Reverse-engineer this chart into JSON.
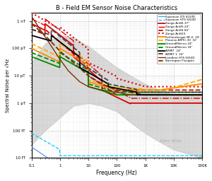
{
  "title": "B - Field EM Sensor Noise Characteristics",
  "xlabel": "Frequency (Hz)",
  "ylabel": "Spectral Noise per √Hz",
  "sferic_label": "Sferic Noise",
  "legend_entries": [
    {
      "label": "Supracon LTS SQUID",
      "color": "#5599dd",
      "ls": "-",
      "lw": 0.9
    },
    {
      "label": "Supracon HTS SQUID",
      "color": "#00ccff",
      "ls": "--",
      "lw": 0.9
    },
    {
      "label": "Zonge AnΘ6 37\"",
      "color": "#dd0000",
      "ls": "-",
      "lw": 1.3
    },
    {
      "label": "Zonge AnΘ5 24\"",
      "color": "#dd0000",
      "ls": "-.",
      "lw": 1.0
    },
    {
      "label": "Zonge AnΘ4 64\"",
      "color": "#dd0000",
      "ls": "--",
      "lw": 1.3
    },
    {
      "label": "Zonge AnΘ23",
      "color": "#dd0000",
      "ls": ":",
      "lw": 1.5
    },
    {
      "label": "Schlumberger BF-6  29'",
      "color": "#ff8800",
      "ls": "-",
      "lw": 1.3
    },
    {
      "label": "Phoenix AMTC-30  32'",
      "color": "#ffaa00",
      "ls": "--",
      "lw": 1.3
    },
    {
      "label": "GroundMetrics 24\"",
      "color": "#008800",
      "ls": "-",
      "lw": 1.3
    },
    {
      "label": "GroundMetrics 18\"",
      "color": "#008800",
      "ls": "--",
      "lw": 1.3
    },
    {
      "label": "ARMIT  24\"",
      "color": "#000000",
      "ls": "-",
      "lw": 1.3
    },
    {
      "label": "ARMIT 1  24\"",
      "color": "#444444",
      "ls": "--",
      "lw": 1.3
    },
    {
      "label": "Landlem HTS SQUID",
      "color": "#7b3000",
      "ls": "-",
      "lw": 1.0
    },
    {
      "label": "Barrington Fluxgate",
      "color": "#7b3000",
      "ls": "--",
      "lw": 1.3
    }
  ],
  "xlim": [
    0.1,
    100000
  ],
  "ylim": [
    1e-05,
    2.0
  ],
  "bg_color": "#ffffff"
}
